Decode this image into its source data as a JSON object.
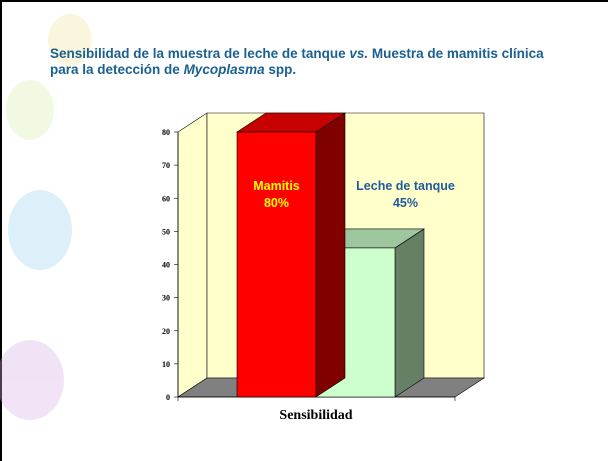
{
  "chart_data": {
    "type": "bar3d",
    "title_parts": [
      {
        "text": "Sensibilidad de la muestra de leche de tanque ",
        "italic": false
      },
      {
        "text": "vs.",
        "italic": true
      },
      {
        "text": " Muestra de mamitis clínica para la detección de ",
        "italic": false
      },
      {
        "text": "Mycoplasma",
        "italic": true
      },
      {
        "text": " spp.",
        "italic": false
      }
    ],
    "categories": [
      "Sensibilidad"
    ],
    "series": [
      {
        "name": "Mamitis",
        "color": "#ff0000",
        "label_color": "#ffff00",
        "values": [
          80
        ],
        "value_labels": [
          "80%"
        ]
      },
      {
        "name": "Leche de tanque",
        "color": "#ccffcc",
        "label_color": "#1f5a9a",
        "values": [
          45
        ],
        "value_labels": [
          "45%"
        ]
      }
    ],
    "ylim": [
      0,
      80
    ],
    "yticks": [
      0,
      10,
      20,
      30,
      40,
      50,
      60,
      70,
      80
    ],
    "wall_color": "#ffffcc",
    "floor_color": "#808080"
  }
}
